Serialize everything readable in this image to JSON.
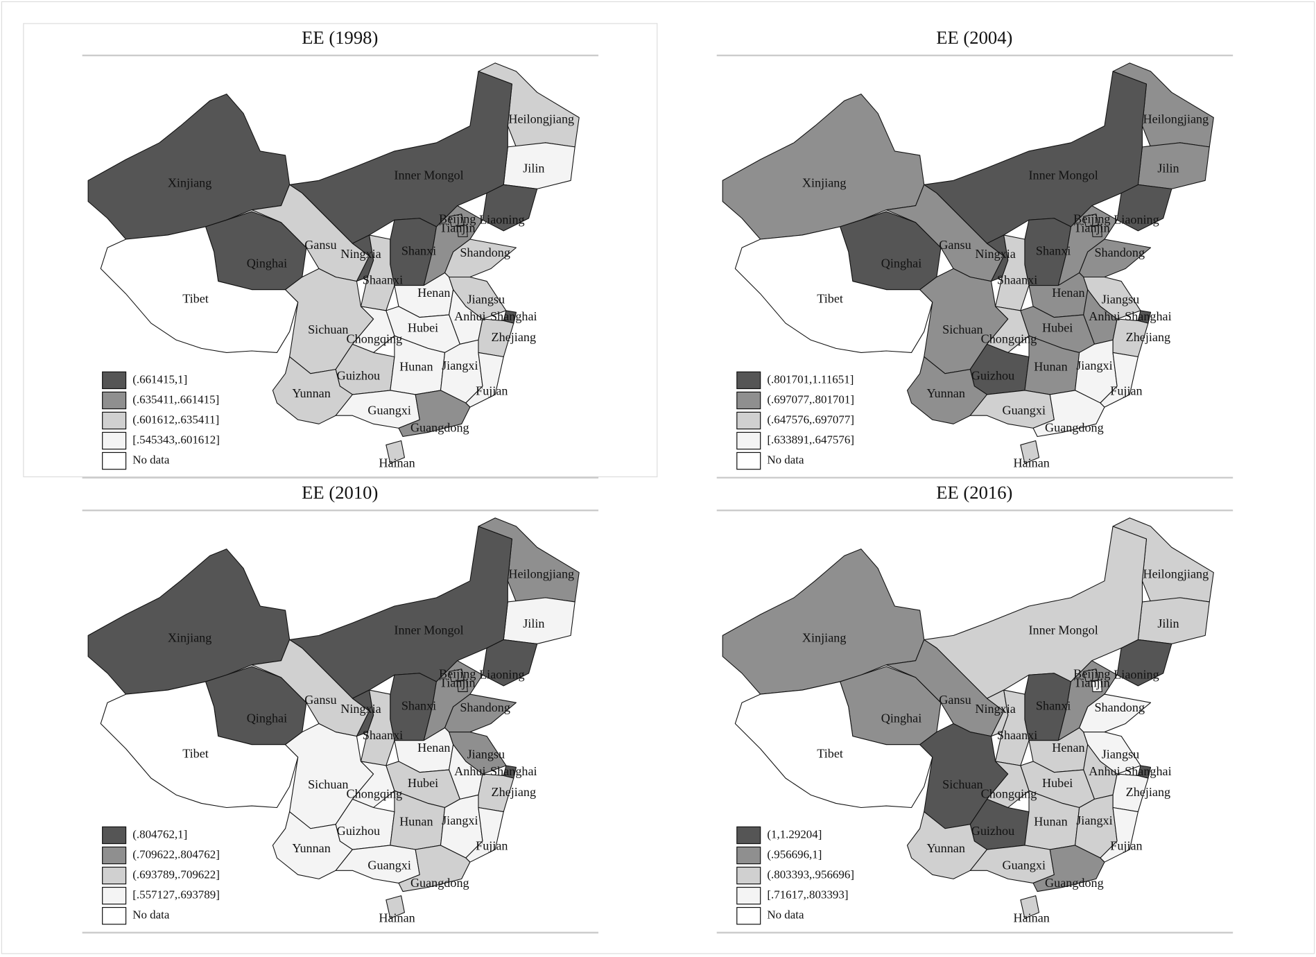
{
  "regions": [
    "Heilongjiang",
    "Jilin",
    "Liaoning",
    "Inner Mongol",
    "Xinjiang",
    "Qinghai",
    "Tibet",
    "Gansu",
    "Ningxia",
    "Shaanxi",
    "Shanxi",
    null,
    "Beijing",
    "Tianjin",
    "Shandong",
    "Henan",
    "Jiangsu",
    "Anhui",
    "Shanghai",
    "Zhejiang",
    "Hubei",
    "Sichuan",
    "Chongqing",
    "Guizhou",
    "Hunan",
    "Jiangxi",
    "Fujian",
    "Yunnan",
    "Guangxi",
    "Guangdong",
    "Hainan"
  ],
  "colors": [
    "#555555",
    "#8f8f8f",
    "#d0d0d0",
    "#f4f4f4",
    "#ffffff"
  ],
  "chart_data": [
    {
      "type": "choropleth",
      "title": "EE (1998)",
      "legend": [
        "(.661415,1]",
        "(.635411,.661415]",
        "(.601612,.635411]",
        "[.545343,.601612]",
        "No data"
      ],
      "values": [
        2,
        3,
        0,
        0,
        0,
        0,
        4,
        2,
        0,
        2,
        0,
        1,
        1,
        1,
        2,
        3,
        2,
        3,
        0,
        2,
        3,
        2,
        3,
        2,
        3,
        3,
        3,
        2,
        3,
        1,
        2
      ]
    },
    {
      "type": "choropleth",
      "title": "EE (2004)",
      "legend": [
        "(.801701,1.11651]",
        "(.697077,.801701]",
        "(.647576,.697077]",
        "[.633891,.647576]",
        "No data"
      ],
      "values": [
        1,
        1,
        0,
        0,
        1,
        0,
        4,
        1,
        0,
        2,
        0,
        1,
        1,
        1,
        1,
        1,
        2,
        1,
        0,
        2,
        1,
        1,
        2,
        0,
        1,
        3,
        3,
        1,
        2,
        3,
        2
      ]
    },
    {
      "type": "choropleth",
      "title": "EE (2010)",
      "legend": [
        "(.804762,1]",
        "(.709622,.804762]",
        "(.693789,.709622]",
        "[.557127,.693789]",
        "No data"
      ],
      "values": [
        1,
        3,
        0,
        0,
        0,
        0,
        4,
        2,
        0,
        2,
        0,
        1,
        1,
        1,
        1,
        3,
        1,
        3,
        0,
        2,
        2,
        3,
        3,
        3,
        2,
        3,
        3,
        3,
        3,
        2,
        2
      ]
    },
    {
      "type": "choropleth",
      "title": "EE (2016)",
      "legend": [
        "(1,1.29204]",
        "(.956696,1]",
        "(.803393,.956696]",
        "[.71617,.803393]",
        "No data"
      ],
      "values": [
        2,
        2,
        0,
        2,
        1,
        1,
        4,
        1,
        2,
        2,
        0,
        1,
        1,
        3,
        3,
        2,
        3,
        2,
        0,
        3,
        2,
        0,
        2,
        0,
        2,
        2,
        3,
        2,
        2,
        1,
        2
      ]
    }
  ]
}
